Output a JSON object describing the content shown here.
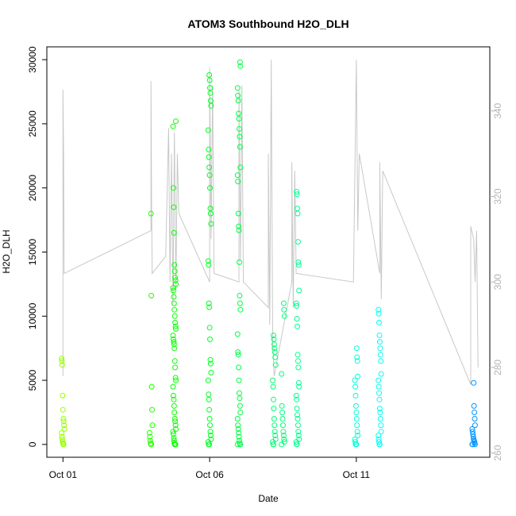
{
  "chart_data": {
    "type": "scatter",
    "title": "ATOM3 Southbound H2O_DLH",
    "xlabel": "Date",
    "ylabel": "H2O_DLH",
    "x_ticks": [
      "Oct 01",
      "Oct 06",
      "Oct 11"
    ],
    "x_tick_days": [
      1,
      6,
      11
    ],
    "xlim_days": [
      0.45,
      15.55
    ],
    "ylim": [
      -1000,
      31000
    ],
    "y_ticks": [
      0,
      5000,
      10000,
      15000,
      20000,
      25000,
      30000
    ],
    "y2lim": [
      259,
      355
    ],
    "y2_ticks": [
      260,
      280,
      300,
      320,
      340
    ],
    "y2_color": "#b3b3b3",
    "point_color_scale": "day of month: green-yellow to blue",
    "scatter": [
      {
        "day": 1.0,
        "values": [
          6700,
          6500,
          6200,
          3800,
          2700,
          2000,
          1800,
          1500,
          1200,
          900,
          600,
          400,
          200,
          100,
          0,
          0
        ]
      },
      {
        "day": 4.0,
        "values": [
          18000,
          11600,
          4500,
          2700,
          1500,
          900,
          600,
          300,
          100,
          0,
          0
        ]
      },
      {
        "day": 4.8,
        "values": [
          25200,
          24800,
          20000,
          18500,
          16500,
          14000,
          13500,
          13000,
          12800,
          12500,
          12200,
          12000,
          11500,
          11000,
          10500,
          10000,
          9500,
          9200,
          9000,
          8500,
          8200,
          8000,
          7800,
          7500,
          6500,
          6000,
          5200,
          5000,
          4500,
          3800,
          3500,
          3000,
          2500,
          2000,
          1800,
          1500,
          1200,
          1000,
          800,
          500,
          300,
          100,
          0,
          0,
          0
        ]
      },
      {
        "day": 6.0,
        "values": [
          28800,
          28400,
          27800,
          27400,
          26800,
          26400,
          24500,
          23000,
          22400,
          21600,
          21000,
          20000,
          18400,
          18000,
          17200,
          14300,
          14000,
          11000,
          10700,
          9100,
          8200,
          6600,
          6300,
          5600,
          5000,
          3900,
          3500,
          2700,
          2000,
          1500,
          1000,
          700,
          400,
          200,
          0,
          0,
          0
        ]
      },
      {
        "day": 7.0,
        "values": [
          29800,
          29500,
          27800,
          27200,
          26800,
          25800,
          25400,
          24600,
          24000,
          23200,
          21600,
          21000,
          20500,
          18000,
          17000,
          16700,
          14200,
          11600,
          11000,
          10500,
          8600,
          7200,
          7000,
          6000,
          5000,
          4000,
          3600,
          3000,
          2500,
          2000,
          1500,
          1200,
          900,
          600,
          300,
          100,
          0,
          0,
          0
        ]
      },
      {
        "day": 8.2,
        "values": [
          8500,
          8200,
          7800,
          7500,
          7200,
          6800,
          6200,
          5000,
          4500,
          3500,
          2800,
          2000,
          1500,
          1000,
          700,
          400,
          200,
          0,
          0
        ]
      },
      {
        "day": 8.5,
        "values": [
          11000,
          10500,
          10000,
          5500,
          3000,
          2500,
          2000,
          1500,
          1000,
          700,
          400,
          200,
          0
        ]
      },
      {
        "day": 9.0,
        "values": [
          19700,
          19500,
          18400,
          18000,
          15800,
          14200,
          14000,
          12000,
          11000,
          10800,
          9800,
          9200,
          7000,
          6500,
          6000,
          4800,
          4500,
          3800,
          3500,
          2800,
          2300,
          2000,
          1500,
          1000,
          700,
          400,
          200,
          0,
          0
        ]
      },
      {
        "day": 11.0,
        "values": [
          7500,
          6800,
          6500,
          5300,
          5000,
          4500,
          3800,
          3000,
          2500,
          2000,
          1500,
          1000,
          700,
          400,
          200,
          0,
          0,
          0
        ]
      },
      {
        "day": 11.8,
        "values": [
          10500,
          10200,
          9500,
          8500,
          8000,
          7500,
          7000,
          6500,
          5500,
          5000,
          4500,
          4000,
          3500,
          2800,
          2500,
          2000,
          1500,
          1000,
          700,
          400,
          200,
          0,
          0
        ]
      },
      {
        "day": 15.0,
        "values": [
          4800,
          3000,
          2500,
          2000,
          1500,
          1200,
          1000,
          800,
          600,
          400,
          300,
          200,
          100,
          0,
          0,
          0
        ]
      }
    ],
    "secondary_line": {
      "name": "",
      "color": "#c8c8c8",
      "points": [
        [
          1.0,
          278
        ],
        [
          1.0,
          345
        ],
        [
          1.02,
          330
        ],
        [
          1.04,
          302
        ],
        [
          4.0,
          312
        ],
        [
          4.0,
          347
        ],
        [
          4.02,
          320
        ],
        [
          4.04,
          302
        ],
        [
          4.5,
          306
        ],
        [
          4.6,
          336
        ],
        [
          4.65,
          300
        ],
        [
          4.7,
          330
        ],
        [
          4.75,
          295
        ],
        [
          4.8,
          335
        ],
        [
          4.85,
          298
        ],
        [
          4.9,
          330
        ],
        [
          4.95,
          316
        ],
        [
          6.0,
          300
        ],
        [
          6.0,
          350
        ],
        [
          6.05,
          310
        ],
        [
          6.1,
          346
        ],
        [
          6.15,
          302
        ],
        [
          7.0,
          300
        ],
        [
          7.0,
          345
        ],
        [
          7.05,
          305
        ],
        [
          7.1,
          346
        ],
        [
          7.15,
          300
        ],
        [
          8.0,
          294
        ],
        [
          8.0,
          330
        ],
        [
          8.05,
          290
        ],
        [
          8.1,
          352
        ],
        [
          8.15,
          286
        ],
        [
          8.2,
          278
        ],
        [
          8.8,
          300
        ],
        [
          8.8,
          328
        ],
        [
          8.85,
          294
        ],
        [
          8.9,
          326
        ],
        [
          8.95,
          302
        ],
        [
          10.9,
          300
        ],
        [
          11.0,
          352
        ],
        [
          11.05,
          312
        ],
        [
          11.1,
          330
        ],
        [
          11.8,
          302
        ],
        [
          11.8,
          328
        ],
        [
          11.85,
          296
        ],
        [
          11.9,
          326
        ],
        [
          14.9,
          276
        ],
        [
          14.9,
          313
        ],
        [
          15.0,
          310
        ],
        [
          15.05,
          300
        ],
        [
          15.1,
          312
        ],
        [
          15.15,
          280
        ]
      ]
    }
  }
}
